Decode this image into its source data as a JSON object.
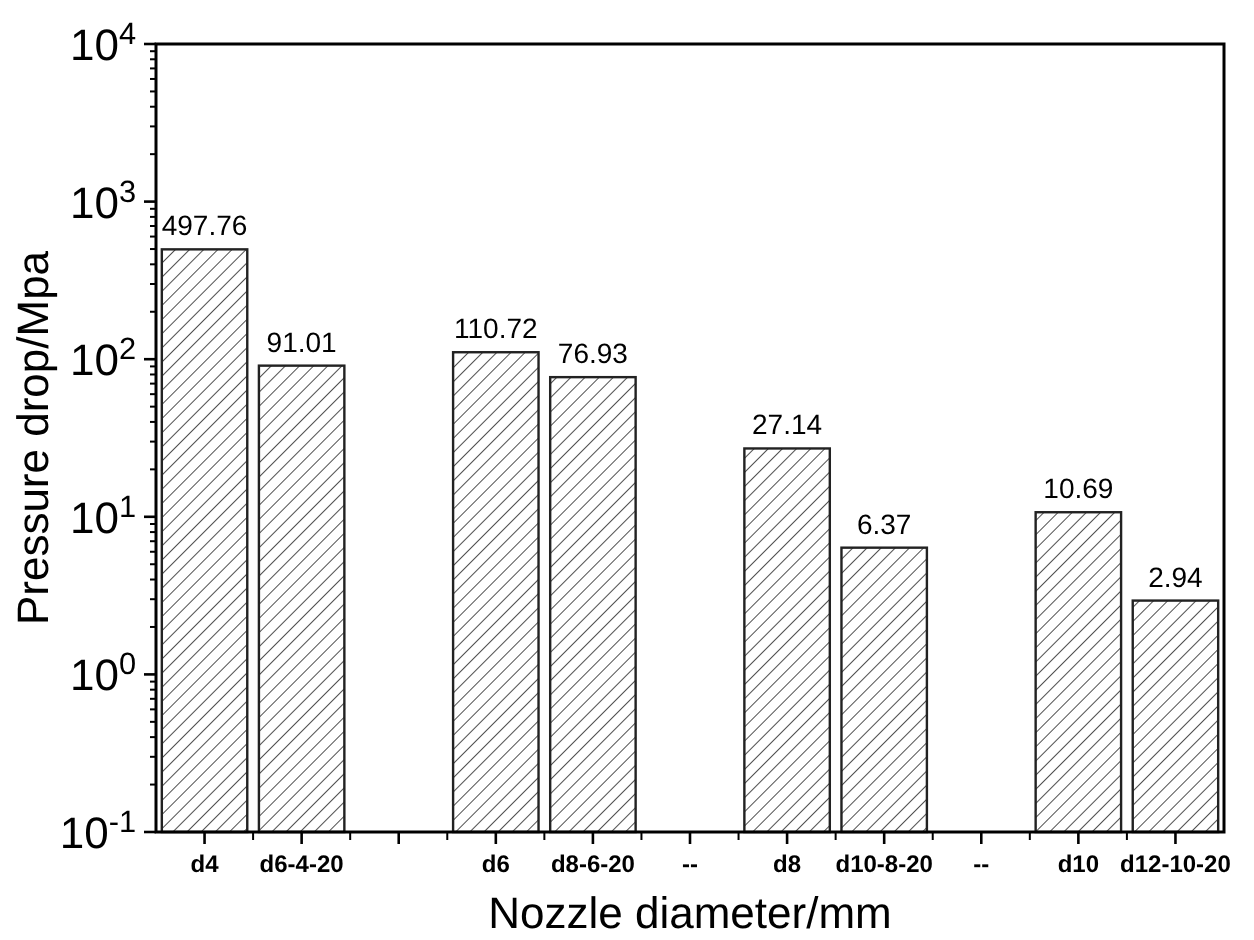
{
  "chart_data": {
    "type": "bar",
    "xlabel": "Nozzle diameter/mm",
    "ylabel": "Pressure drop/Mpa",
    "categories": [
      "d4",
      "d6-4-20",
      null,
      "d6",
      "d8-6-20",
      "--",
      "d8",
      "d10-8-20",
      "--",
      "d10",
      "d12-10-20"
    ],
    "values": [
      497.76,
      91.01,
      null,
      110.72,
      76.93,
      null,
      27.14,
      6.37,
      null,
      10.69,
      2.94
    ],
    "color": "#222222",
    "log": true,
    "ylim": [
      0.1,
      10000
    ],
    "yticks": [
      {
        "value": 0.1,
        "label": "10$^{-1}$"
      },
      {
        "value": 1,
        "label": "10$^{0}$"
      },
      {
        "value": 10,
        "label": "10$^{1}$"
      },
      {
        "value": 100,
        "label": "10$^{2}$"
      },
      {
        "value": 1000,
        "label": "10$^{3}$"
      },
      {
        "value": 10000,
        "label": "10$^{4}$"
      }
    ],
    "data_labels": true
  }
}
